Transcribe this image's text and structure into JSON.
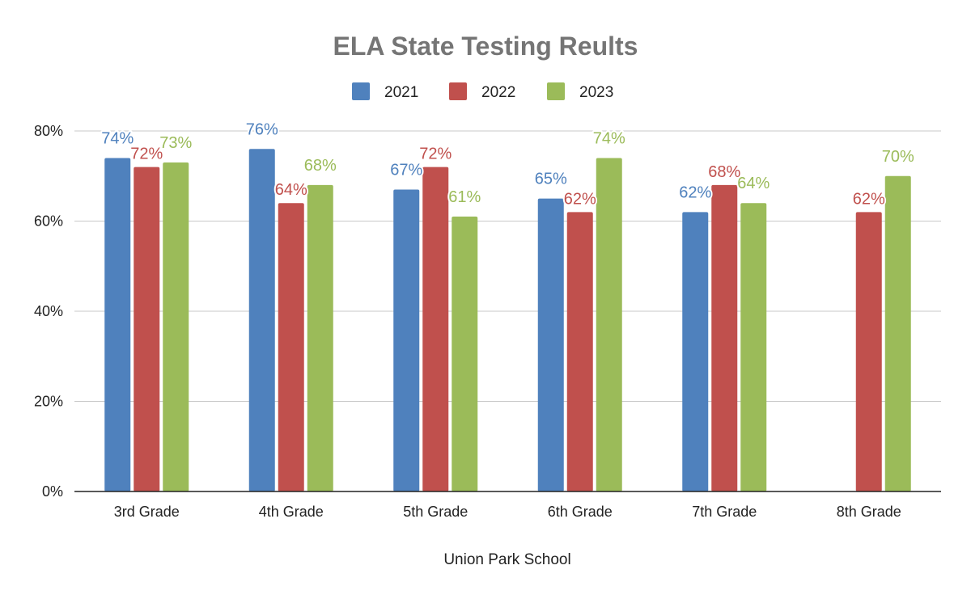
{
  "chart_data": {
    "type": "bar",
    "title": "ELA State Testing Reults",
    "xlabel": "Union Park School",
    "ylabel": "",
    "ylim": [
      0,
      80
    ],
    "y_ticks": [
      "0%",
      "20%",
      "40%",
      "60%",
      "80%"
    ],
    "y_tick_values": [
      0,
      20,
      40,
      60,
      80
    ],
    "grid": true,
    "legend_position": "top",
    "categories": [
      "3rd Grade",
      "4th Grade",
      "5th Grade",
      "6th Grade",
      "7th Grade",
      "8th Grade"
    ],
    "series": [
      {
        "name": "2021",
        "color": "#4f81bd",
        "values": [
          74,
          76,
          67,
          65,
          62,
          null
        ],
        "labels": [
          "74%",
          "76%",
          "67%",
          "65%",
          "62%",
          null
        ]
      },
      {
        "name": "2022",
        "color": "#c0504d",
        "values": [
          72,
          64,
          72,
          62,
          68,
          62
        ],
        "labels": [
          "72%",
          "64%",
          "72%",
          "62%",
          "68%",
          "62%"
        ]
      },
      {
        "name": "2023",
        "color": "#9bbb59",
        "values": [
          73,
          68,
          61,
          74,
          64,
          70
        ],
        "labels": [
          "73%",
          "68%",
          "61%",
          "74%",
          "64%",
          "70%"
        ]
      }
    ]
  }
}
